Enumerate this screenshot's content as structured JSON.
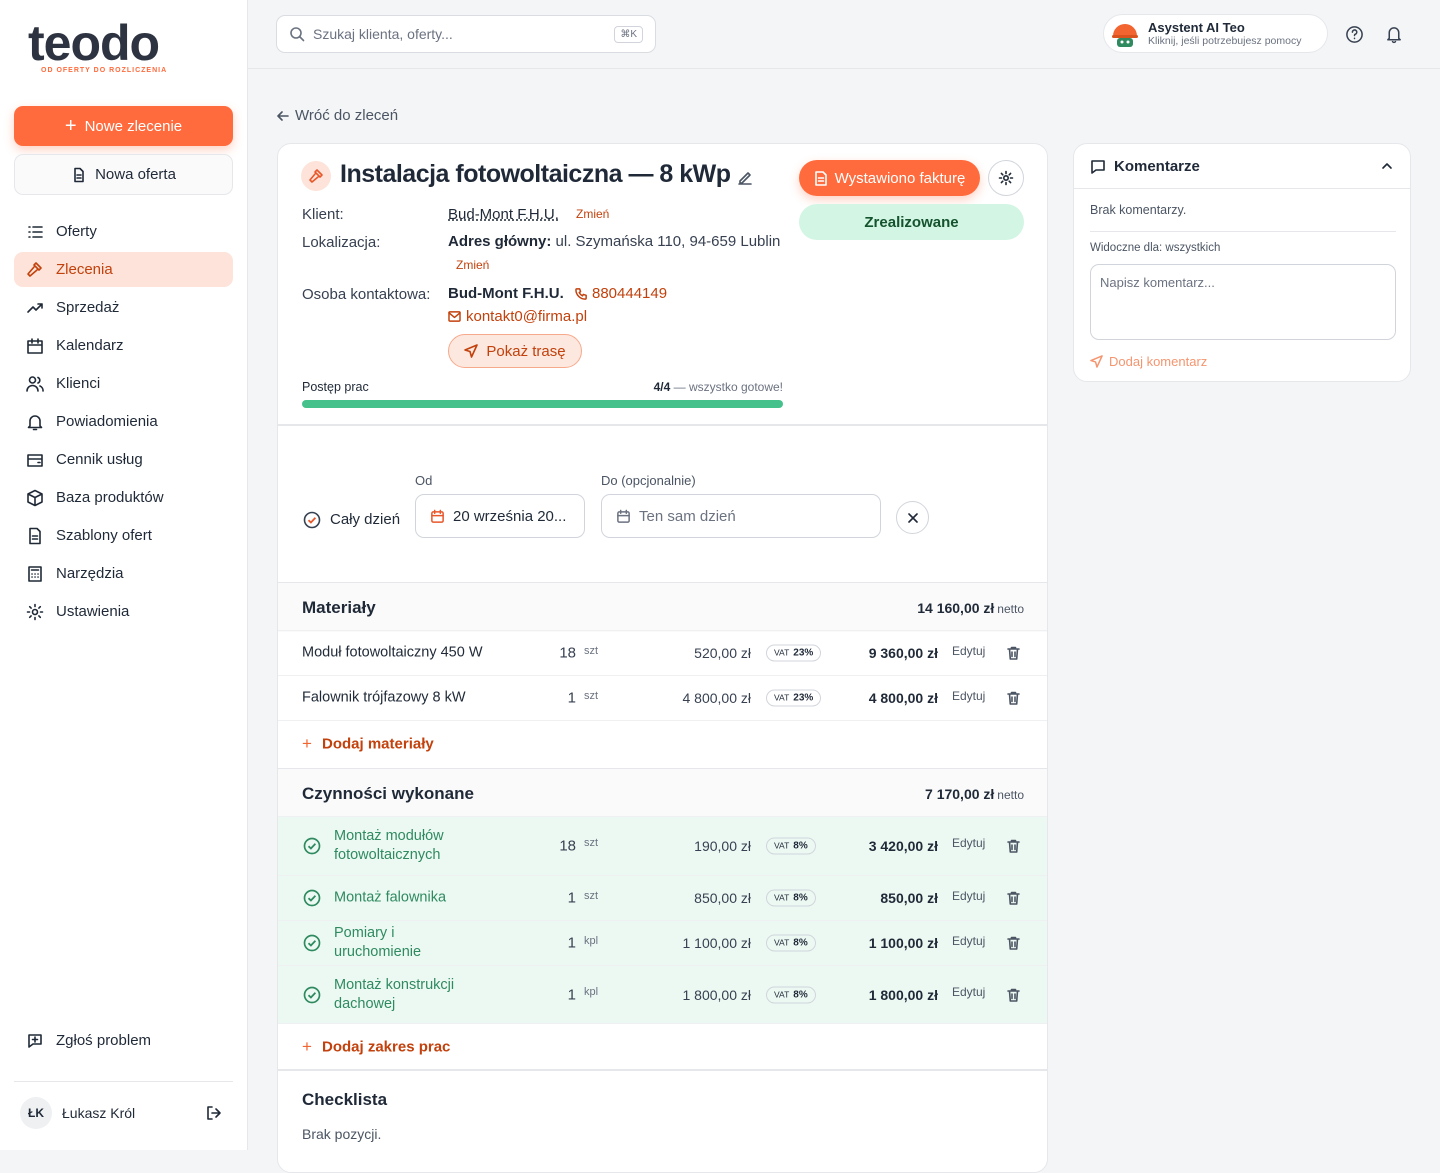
{
  "logo": {
    "name": "teodo",
    "tagline": "OD OFERTY DO ROZLICZENIA"
  },
  "sidebar": {
    "primary_button": "Nowe zlecenie",
    "secondary_button": "Nowa oferta",
    "nav": [
      "Oferty",
      "Zlecenia",
      "Sprzedaż",
      "Kalendarz",
      "Klienci",
      "Powiadomienia",
      "Cennik usług",
      "Baza produktów",
      "Szablony ofert",
      "Narzędzia",
      "Ustawienia"
    ],
    "report": "Zgłoś problem",
    "user": {
      "initials": "ŁK",
      "name": "Łukasz Król"
    }
  },
  "topbar": {
    "search_placeholder": "Szukaj klienta, oferty...",
    "shortcut": "⌘K",
    "assistant": {
      "title": "Asystent AI Teo",
      "subtitle": "Kliknij, jeśli potrzebujesz pomocy"
    }
  },
  "back_link": "Wróć do zleceń",
  "order": {
    "title": "Instalacja fotowoltaiczna — 8 kWp",
    "invoice_button": "Wystawiono fakturę",
    "status": "Zrealizowane",
    "client_label": "Klient:",
    "client": "Bud-Mont F.H.U.",
    "change": "Zmień",
    "location_label": "Lokalizacja:",
    "location_prefix": "Adres główny:",
    "location": "ul. Szymańska 110, 94-659 Lublin",
    "contact_label": "Osoba kontaktowa:",
    "contact_name": "Bud-Mont F.H.U.",
    "phone": "880444149",
    "email": "kontakt0@firma.pl",
    "route_button": "Pokaż trasę",
    "progress": {
      "label": "Postęp prac",
      "count": "4/4",
      "note": "— wszystko gotowe!"
    }
  },
  "schedule": {
    "all_day": "Cały dzień",
    "from_label": "Od",
    "from": "20 września 20...",
    "to_label": "Do (opcjonalnie)",
    "to_placeholder": "Ten sam dzień"
  },
  "labels": {
    "edit": "Edytuj",
    "vat": "VAT",
    "net": "netto"
  },
  "materials": {
    "title": "Materiały",
    "total": "14 160,00 zł",
    "rows": [
      {
        "name": "Moduł fotowoltaiczny 450 W",
        "qty": "18",
        "unit": "szt",
        "price": "520,00 zł",
        "vat": "23%",
        "total": "9 360,00 zł"
      },
      {
        "name": "Falownik trójfazowy 8 kW",
        "qty": "1",
        "unit": "szt",
        "price": "4 800,00 zł",
        "vat": "23%",
        "total": "4 800,00 zł"
      }
    ],
    "add": "Dodaj materiały"
  },
  "works": {
    "title": "Czynności wykonane",
    "total": "7 170,00 zł",
    "rows": [
      {
        "name": "Montaż modułów fotowoltaicznych",
        "qty": "18",
        "unit": "szt",
        "price": "190,00 zł",
        "vat": "8%",
        "total": "3 420,00 zł"
      },
      {
        "name": "Montaż falownika",
        "qty": "1",
        "unit": "szt",
        "price": "850,00 zł",
        "vat": "8%",
        "total": "850,00 zł"
      },
      {
        "name": "Pomiary i uruchomienie",
        "qty": "1",
        "unit": "kpl",
        "price": "1 100,00 zł",
        "vat": "8%",
        "total": "1 100,00 zł"
      },
      {
        "name": "Montaż konstrukcji dachowej",
        "qty": "1",
        "unit": "kpl",
        "price": "1 800,00 zł",
        "vat": "8%",
        "total": "1 800,00 zł"
      }
    ],
    "add": "Dodaj zakres prac"
  },
  "checklist": {
    "title": "Checklista",
    "empty": "Brak pozycji."
  },
  "comments": {
    "title": "Komentarze",
    "empty": "Brak komentarzy.",
    "visibility": "Widoczne dla: wszystkich",
    "placeholder": "Napisz komentarz...",
    "button": "Dodaj komentarz"
  }
}
